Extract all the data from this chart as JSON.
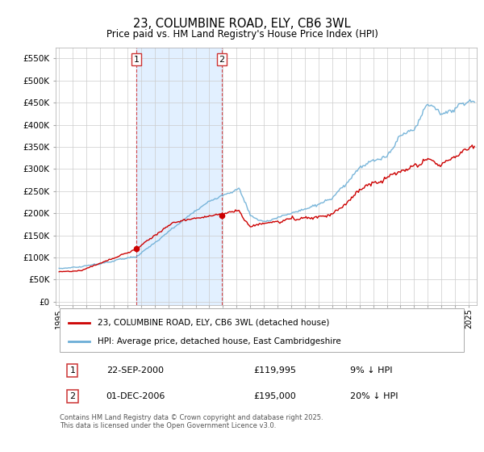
{
  "title": "23, COLUMBINE ROAD, ELY, CB6 3WL",
  "subtitle": "Price paid vs. HM Land Registry's House Price Index (HPI)",
  "hpi_color": "#6baed6",
  "price_color": "#cc0000",
  "sale1_date_idx": 68,
  "sale1_price": 119995,
  "sale2_date_idx": 143,
  "sale2_price": 195000,
  "legend_line1": "23, COLUMBINE ROAD, ELY, CB6 3WL (detached house)",
  "legend_line2": "HPI: Average price, detached house, East Cambridgeshire",
  "footer": "Contains HM Land Registry data © Crown copyright and database right 2025.\nThis data is licensed under the Open Government Licence v3.0.",
  "ylabel_ticks": [
    "£0",
    "£50K",
    "£100K",
    "£150K",
    "£200K",
    "£250K",
    "£300K",
    "£350K",
    "£400K",
    "£450K",
    "£500K",
    "£550K"
  ],
  "ylabel_values": [
    0,
    50000,
    100000,
    150000,
    200000,
    250000,
    300000,
    350000,
    400000,
    450000,
    500000,
    550000
  ],
  "background_color": "#ffffff",
  "grid_color": "#cccccc",
  "span_color": "#ddeeff",
  "n_months": 366,
  "start_year": 1995,
  "end_year": 2025
}
